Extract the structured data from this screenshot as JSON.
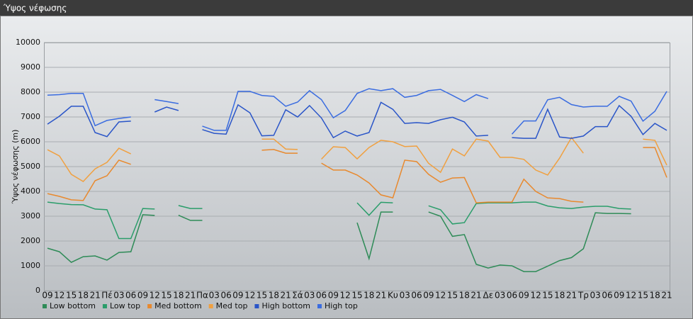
{
  "chart_data": {
    "type": "line",
    "title": "Ύψος νέφωσης",
    "ylabel": "Ύψος νέφωσης (m)",
    "categories": [
      "09",
      "12",
      "15",
      "18",
      "21",
      "Πέ",
      "03",
      "06",
      "09",
      "12",
      "15",
      "18",
      "21",
      "Πα",
      "03",
      "06",
      "09",
      "12",
      "15",
      "18",
      "21",
      "Σά",
      "03",
      "06",
      "09",
      "12",
      "15",
      "18",
      "21",
      "Κυ",
      "03",
      "06",
      "09",
      "12",
      "15",
      "18",
      "21",
      "Δε",
      "03",
      "06",
      "09",
      "12",
      "15",
      "18",
      "21",
      "Τρ",
      "03",
      "06",
      "09",
      "12",
      "15",
      "18",
      "21"
    ],
    "ylim": [
      0,
      10000
    ],
    "yticks": [
      0,
      1000,
      2000,
      3000,
      4000,
      5000,
      6000,
      7000,
      8000,
      9000,
      10000
    ],
    "grid": true,
    "series": [
      {
        "name": "Low bottom",
        "color": "#2e8b57",
        "values": [
          1710,
          1570,
          1140,
          1370,
          1400,
          1230,
          1540,
          1570,
          3060,
          3030,
          null,
          3040,
          2830,
          2830,
          null,
          null,
          null,
          null,
          null,
          null,
          null,
          null,
          null,
          null,
          null,
          null,
          2740,
          1290,
          3170,
          3170,
          null,
          null,
          3170,
          3000,
          2190,
          2260,
          1060,
          910,
          1030,
          1000,
          770,
          770,
          990,
          1210,
          1330,
          1690,
          3140,
          3110,
          3110,
          3100,
          null,
          null,
          null
        ]
      },
      {
        "name": "Low top",
        "color": "#2a9d6a",
        "values": [
          3570,
          3510,
          3470,
          3460,
          3290,
          3260,
          2100,
          2100,
          3310,
          3290,
          null,
          3430,
          3310,
          3310,
          null,
          null,
          null,
          null,
          null,
          null,
          null,
          null,
          null,
          null,
          null,
          null,
          3540,
          3040,
          3560,
          3540,
          null,
          null,
          3420,
          3260,
          2690,
          2740,
          3510,
          3540,
          3540,
          3540,
          3570,
          3570,
          3410,
          3340,
          3310,
          3370,
          3400,
          3400,
          3310,
          3290,
          null,
          null,
          null
        ]
      },
      {
        "name": "Med bottom",
        "color": "#e8892e",
        "values": [
          3910,
          3800,
          3660,
          3630,
          4430,
          4630,
          5260,
          5090,
          null,
          null,
          null,
          null,
          null,
          null,
          null,
          null,
          null,
          null,
          5660,
          5690,
          5540,
          5540,
          null,
          5140,
          4860,
          4860,
          4660,
          4340,
          3860,
          3740,
          5260,
          5200,
          4690,
          4370,
          4540,
          4560,
          3540,
          3570,
          3570,
          3570,
          4490,
          4000,
          3740,
          3710,
          3600,
          3570,
          null,
          null,
          null,
          null,
          5770,
          5770,
          4560
        ]
      },
      {
        "name": "Med top",
        "color": "#f0a040",
        "values": [
          5680,
          5430,
          4690,
          4400,
          4910,
          5170,
          5740,
          5510,
          null,
          null,
          null,
          null,
          null,
          null,
          null,
          null,
          null,
          null,
          6110,
          6110,
          5710,
          5690,
          null,
          5300,
          5800,
          5770,
          5310,
          5770,
          6060,
          6000,
          5810,
          5830,
          5130,
          4770,
          5710,
          5430,
          6110,
          6030,
          5370,
          5370,
          5290,
          4860,
          4660,
          5340,
          6170,
          5540,
          null,
          null,
          null,
          null,
          6110,
          6060,
          5060
        ]
      },
      {
        "name": "High bottom",
        "color": "#2a55c8",
        "values": [
          6710,
          7030,
          7430,
          7430,
          6370,
          6210,
          6800,
          6830,
          null,
          7200,
          7400,
          7260,
          null,
          6490,
          6340,
          6310,
          7490,
          7170,
          6240,
          6260,
          7290,
          7000,
          7460,
          6960,
          6170,
          6430,
          6230,
          6370,
          7590,
          7310,
          6740,
          6770,
          6740,
          6890,
          6990,
          6800,
          6230,
          6260,
          null,
          6170,
          6140,
          6140,
          7310,
          6190,
          6140,
          6230,
          6610,
          6610,
          7460,
          7030,
          6290,
          6740,
          6460
        ]
      },
      {
        "name": "High top",
        "color": "#3a6ce0",
        "values": [
          7880,
          7900,
          7950,
          7950,
          6650,
          6860,
          6940,
          7000,
          null,
          7700,
          7620,
          7540,
          null,
          6630,
          6460,
          6460,
          8030,
          8030,
          7870,
          7830,
          7430,
          7600,
          8060,
          7700,
          6970,
          7260,
          7950,
          8140,
          8060,
          8140,
          7790,
          7870,
          8060,
          8110,
          7870,
          7620,
          7900,
          7740,
          null,
          6310,
          6840,
          6840,
          7690,
          7790,
          7500,
          7400,
          7430,
          7430,
          7830,
          7640,
          6830,
          7230,
          8030
        ]
      }
    ]
  }
}
